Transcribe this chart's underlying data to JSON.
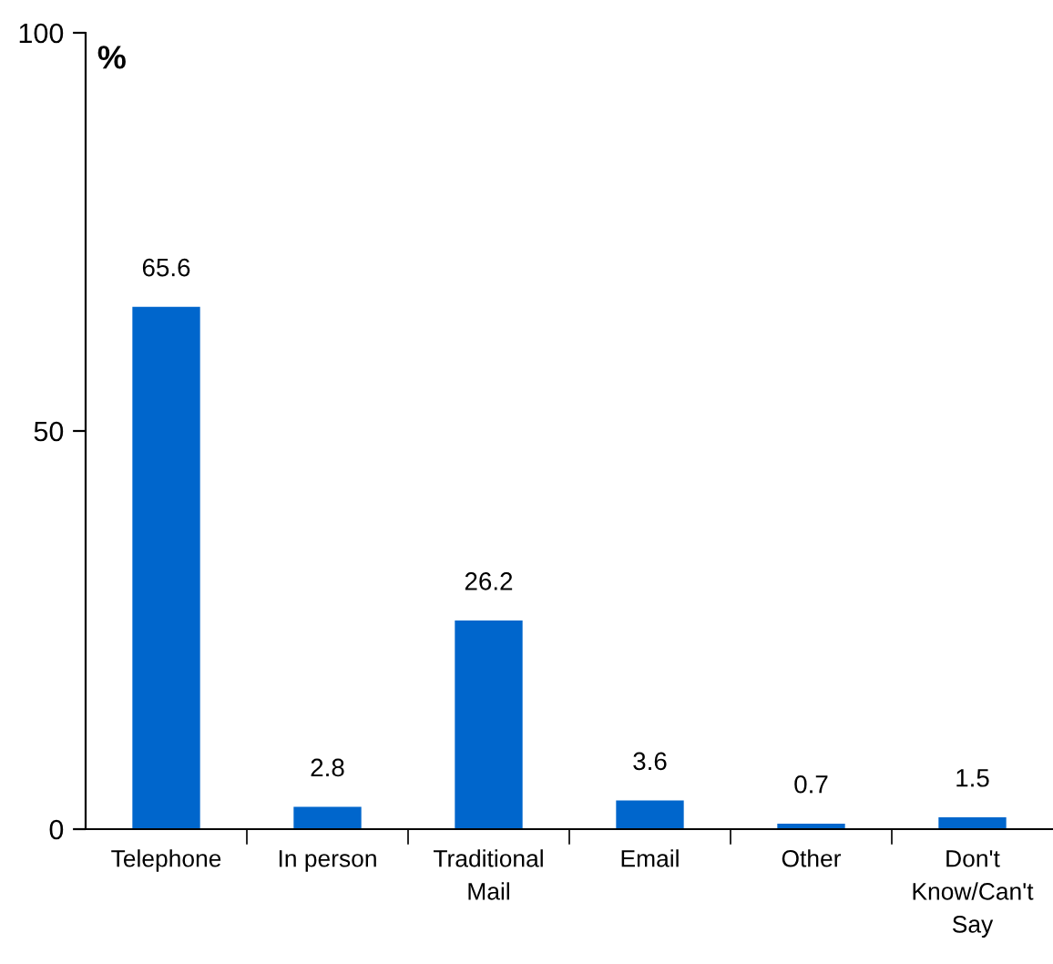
{
  "chart_data": {
    "type": "bar",
    "ylabel": "%",
    "categories": [
      "Telephone",
      "In person",
      "Traditional\nMail",
      "Email",
      "Other",
      "Don't\nKnow/Can't\nSay"
    ],
    "values": [
      65.6,
      2.8,
      26.2,
      3.6,
      0.7,
      1.5
    ],
    "color": "#0066cc",
    "ylim": [
      0,
      100
    ],
    "yticks": [
      0,
      50,
      100
    ],
    "data_labels": true,
    "grid": false,
    "legend": false
  }
}
